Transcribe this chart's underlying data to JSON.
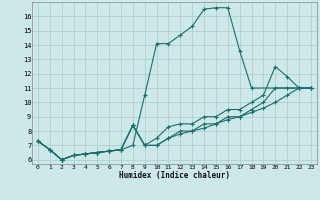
{
  "xlabel": "Humidex (Indice chaleur)",
  "bg_color": "#cce8e8",
  "grid_color": "#aacccc",
  "line_color": "#1a6e6a",
  "xlim": [
    -0.5,
    23.5
  ],
  "ylim": [
    5.7,
    17.0
  ],
  "yticks": [
    6,
    7,
    8,
    9,
    10,
    11,
    12,
    13,
    14,
    15,
    16
  ],
  "xticks": [
    0,
    1,
    2,
    3,
    4,
    5,
    6,
    7,
    8,
    9,
    10,
    11,
    12,
    13,
    14,
    15,
    16,
    17,
    18,
    19,
    20,
    21,
    22,
    23
  ],
  "series": [
    {
      "x": [
        0,
        1,
        2,
        3,
        4,
        5,
        6,
        7,
        8,
        9,
        10,
        11,
        12,
        13,
        14,
        15,
        16,
        17,
        18,
        22,
        23
      ],
      "y": [
        7.3,
        6.7,
        6.0,
        6.3,
        6.4,
        6.5,
        6.6,
        6.7,
        7.0,
        10.5,
        14.1,
        14.1,
        14.7,
        15.3,
        16.5,
        16.6,
        16.6,
        13.6,
        11.0,
        11.0,
        11.0
      ]
    },
    {
      "x": [
        0,
        1,
        2,
        3,
        4,
        5,
        6,
        7,
        8,
        9,
        10,
        11,
        12,
        13,
        14,
        15,
        16,
        17,
        18,
        19,
        20,
        21,
        22,
        23
      ],
      "y": [
        7.3,
        6.7,
        6.0,
        6.3,
        6.4,
        6.5,
        6.6,
        6.7,
        8.4,
        7.0,
        7.5,
        8.3,
        8.5,
        8.5,
        9.0,
        9.0,
        9.5,
        9.5,
        10.0,
        10.5,
        12.5,
        11.8,
        11.0,
        11.0
      ]
    },
    {
      "x": [
        0,
        1,
        2,
        3,
        4,
        5,
        6,
        7,
        8,
        9,
        10,
        11,
        12,
        13,
        14,
        15,
        16,
        17,
        18,
        19,
        20,
        21,
        22,
        23
      ],
      "y": [
        7.3,
        6.7,
        6.0,
        6.3,
        6.4,
        6.5,
        6.6,
        6.7,
        8.4,
        7.0,
        7.0,
        7.5,
        8.0,
        8.0,
        8.5,
        8.5,
        9.0,
        9.0,
        9.5,
        10.0,
        11.0,
        11.0,
        11.0,
        11.0
      ]
    },
    {
      "x": [
        0,
        1,
        2,
        3,
        4,
        5,
        6,
        7,
        8,
        9,
        10,
        11,
        12,
        13,
        14,
        15,
        16,
        17,
        18,
        19,
        20,
        21,
        22,
        23
      ],
      "y": [
        7.3,
        6.7,
        6.0,
        6.3,
        6.4,
        6.5,
        6.6,
        6.7,
        8.4,
        7.0,
        7.0,
        7.5,
        7.8,
        8.0,
        8.2,
        8.5,
        8.8,
        9.0,
        9.3,
        9.6,
        10.0,
        10.5,
        11.0,
        11.0
      ]
    }
  ]
}
